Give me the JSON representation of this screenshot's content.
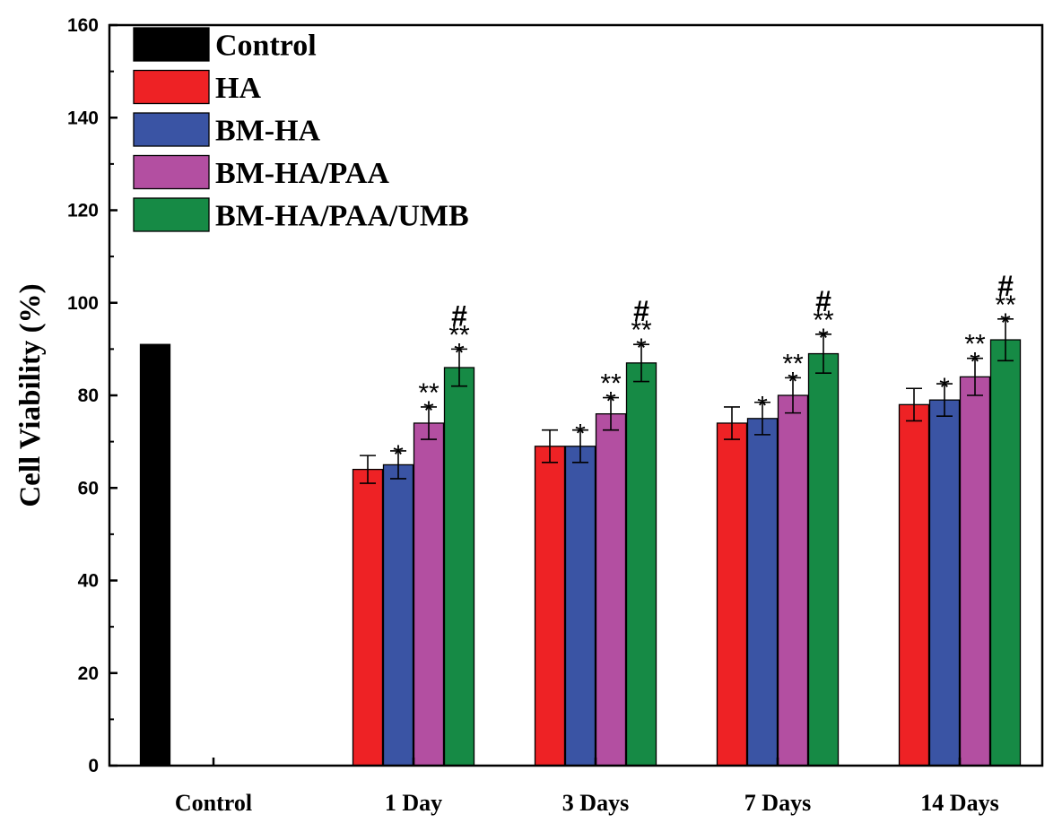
{
  "chart_data": {
    "type": "bar",
    "title": "",
    "xlabel": "",
    "ylabel": "Cell Viability (%)",
    "ylim": [
      0,
      160
    ],
    "yticks": [
      0,
      20,
      40,
      60,
      80,
      100,
      120,
      140,
      160
    ],
    "grid": false,
    "legend_position": "top-left",
    "categories": [
      "Control",
      "1 Day",
      "3 Days",
      "7 Days",
      "14 Days"
    ],
    "series": [
      {
        "name": "Control",
        "color": "#000000",
        "values": [
          91,
          null,
          null,
          null,
          null
        ],
        "errors": [
          0,
          null,
          null,
          null,
          null
        ],
        "annotations": [
          "",
          "",
          "",
          "",
          ""
        ]
      },
      {
        "name": "HA",
        "color": "#ee2225",
        "values": [
          null,
          64,
          69,
          74,
          78
        ],
        "errors": [
          null,
          3,
          3.5,
          3.5,
          3.5
        ],
        "annotations": [
          "",
          "",
          "",
          "",
          ""
        ]
      },
      {
        "name": "BM-HA",
        "color": "#3a54a4",
        "values": [
          null,
          65,
          69,
          75,
          79
        ],
        "errors": [
          null,
          3,
          3.5,
          3.5,
          3.5
        ],
        "annotations": [
          "",
          "*",
          "*",
          "*",
          "*"
        ]
      },
      {
        "name": "BM-HA/PAA",
        "color": "#b34fa1",
        "values": [
          null,
          74,
          76,
          80,
          84
        ],
        "errors": [
          null,
          3.5,
          3.5,
          3.8,
          4
        ],
        "annotations": [
          "",
          "**|*",
          "**|*",
          "**|*",
          "**|*"
        ]
      },
      {
        "name": "BM-HA/PAA/UMB",
        "color": "#168a45",
        "values": [
          null,
          86,
          87,
          89,
          92
        ],
        "errors": [
          null,
          4,
          4,
          4.2,
          4.5
        ],
        "annotations": [
          "",
          "#|**|*",
          "#|**|*",
          "#|**|*",
          "#|**|*"
        ]
      }
    ]
  }
}
